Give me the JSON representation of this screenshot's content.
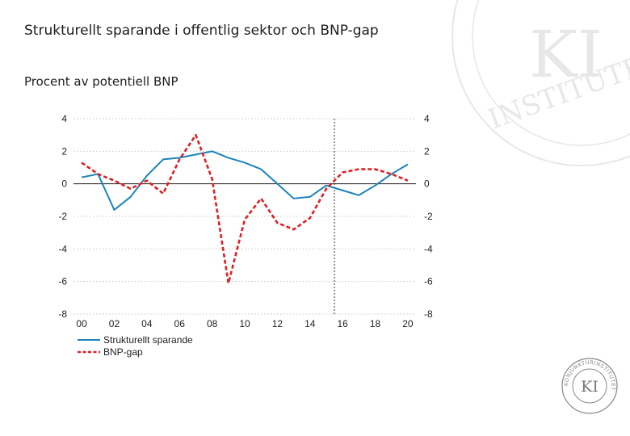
{
  "header": {
    "title": "Strukturellt sparande i offentlig sektor och BNP-gap",
    "subtitle": "Procent av potentiell BNP"
  },
  "logo": {
    "ring_text": "KONJUNKTURINSTITUTET",
    "watermark_text": "INSTITUTET",
    "mark": "KI"
  },
  "colors": {
    "structural": "#1b83b8",
    "gap": "#e02020",
    "zero_line": "#1a1a1a",
    "grid": "#c8c8c8",
    "forecast_line": "#555555"
  },
  "chart_data": {
    "type": "line",
    "title": "Strukturellt sparande i offentlig sektor och BNP-gap",
    "ylabel": "Procent av potentiell BNP",
    "x": [
      2000,
      2001,
      2002,
      2003,
      2004,
      2005,
      2006,
      2007,
      2008,
      2009,
      2010,
      2011,
      2012,
      2013,
      2014,
      2015,
      2016,
      2017,
      2018,
      2019,
      2020
    ],
    "xlim": [
      1999.5,
      2020.5
    ],
    "ylim": [
      -8,
      4
    ],
    "yticks": [
      4,
      2,
      0,
      -2,
      -4,
      -6,
      -8
    ],
    "xticks": [
      {
        "value": 2000,
        "label": "00"
      },
      {
        "value": 2002,
        "label": "02"
      },
      {
        "value": 2004,
        "label": "04"
      },
      {
        "value": 2006,
        "label": "06"
      },
      {
        "value": 2008,
        "label": "08"
      },
      {
        "value": 2010,
        "label": "10"
      },
      {
        "value": 2012,
        "label": "12"
      },
      {
        "value": 2014,
        "label": "14"
      },
      {
        "value": 2016,
        "label": "16"
      },
      {
        "value": 2018,
        "label": "18"
      },
      {
        "value": 2020,
        "label": "20"
      }
    ],
    "forecast_start": 2015.5,
    "grid": true,
    "legend_position": "bottom-left",
    "series": [
      {
        "name": "Strukturellt sparande",
        "style": "solid",
        "values": [
          0.4,
          0.6,
          -1.6,
          -0.8,
          0.5,
          1.5,
          1.6,
          1.8,
          2.0,
          1.6,
          1.3,
          0.9,
          0.0,
          -0.9,
          -0.8,
          -0.1,
          -0.4,
          -0.7,
          -0.1,
          0.6,
          1.2
        ]
      },
      {
        "name": "BNP-gap",
        "style": "dashed",
        "values": [
          1.3,
          0.6,
          0.2,
          -0.3,
          0.2,
          -0.6,
          1.5,
          3.0,
          0.3,
          -6.1,
          -2.2,
          -0.9,
          -2.4,
          -2.8,
          -2.1,
          -0.3,
          0.7,
          0.9,
          0.9,
          0.6,
          0.2
        ]
      }
    ]
  }
}
